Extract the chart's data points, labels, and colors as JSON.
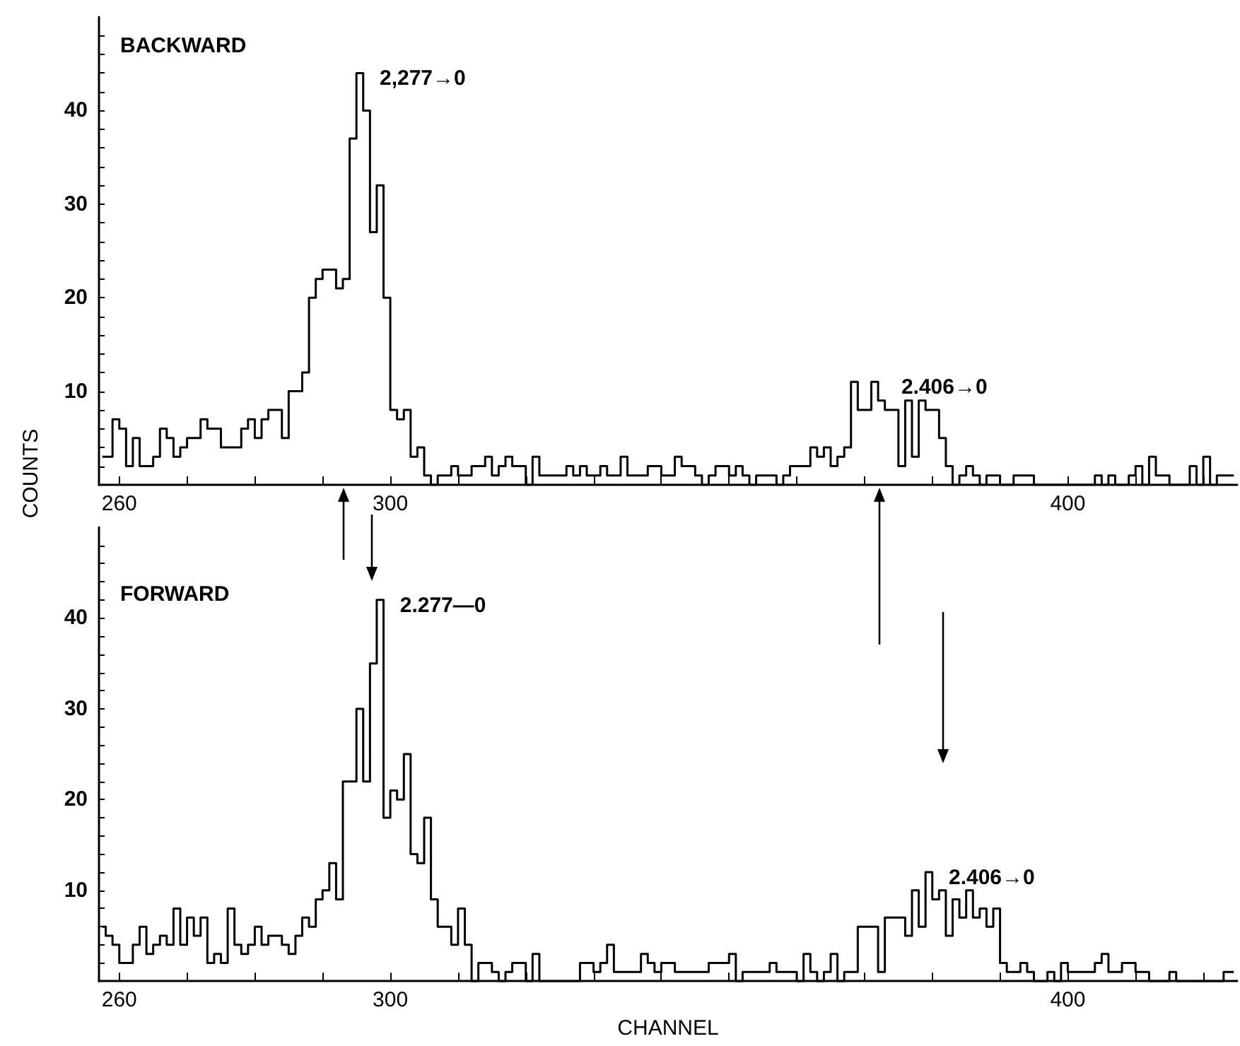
{
  "chart_data": [
    {
      "type": "step",
      "title": "BACKWARD",
      "ylabel": "COUNTS",
      "color": "#000000",
      "x": [
        257.5,
        258.5,
        259.5,
        260.5,
        261.5,
        262.5,
        263.5,
        264.5,
        265.5,
        266.5,
        267.5,
        268.5,
        269.5,
        270.5,
        271.5,
        272.5,
        273.5,
        274.5,
        275.5,
        276.5,
        277.5,
        278.5,
        279.5,
        280.5,
        281.5,
        282.5,
        283.5,
        284.5,
        285.5,
        286.5,
        287.5,
        288.5,
        289.5,
        290.5,
        291.5,
        292.5,
        293.5,
        294.5,
        295.5,
        296.5,
        297.5,
        298.5,
        299.5,
        300.5,
        301.5,
        302.5,
        303.5,
        304.5,
        305.5,
        306.5,
        307.5,
        308.5,
        309.5,
        310.5,
        311.5,
        312.5,
        313.5,
        314.5,
        315.5,
        316.5,
        317.5,
        318.5,
        319.5,
        320.5,
        321.5,
        322.5,
        323.5,
        324.5,
        325.5,
        326.5,
        327.5,
        328.5,
        329.5,
        330.5,
        331.5,
        332.5,
        333.5,
        334.5,
        335.5,
        336.5,
        337.5,
        338.5,
        339.5,
        340.5,
        341.5,
        342.5,
        343.5,
        344.5,
        345.5,
        346.5,
        347.5,
        348.5,
        349.5,
        350.5,
        351.5,
        352.5,
        353.5,
        354.5,
        355.5,
        356.5,
        357.5,
        358.5,
        359.5,
        360.5,
        361.5,
        362.5,
        363.5,
        364.5,
        365.5,
        366.5,
        367.5,
        368.5,
        369.5,
        370.5,
        371.5,
        372.5,
        373.5,
        374.5,
        375.5,
        376.5,
        377.5,
        378.5,
        379.5,
        380.5,
        381.5,
        382.5,
        383.5,
        384.5,
        385.5,
        386.5,
        387.5,
        388.5,
        389.5,
        390.5,
        391.5,
        392.5,
        393.5,
        394.5,
        395.5,
        396.5,
        397.5,
        398.5,
        399.5,
        400.5,
        401.5,
        402.5,
        403.5,
        404.5,
        405.5,
        406.5,
        407.5,
        408.5,
        409.5,
        410.5,
        411.5,
        412.5,
        413.5,
        414.5,
        415.5,
        416.5,
        417.5,
        418.5,
        419.5,
        420.5,
        421.5,
        422.5,
        423.5,
        424.5
      ],
      "values": [
        3,
        3,
        7,
        6,
        2,
        5,
        2,
        2,
        3,
        6,
        5,
        3,
        4,
        5,
        5,
        7,
        6,
        6,
        4,
        4,
        4,
        6,
        7,
        5,
        7,
        8,
        8,
        5,
        10,
        10,
        12,
        20,
        22,
        23,
        23,
        21,
        22,
        37,
        44,
        40,
        27,
        32,
        20,
        8,
        7,
        8,
        3,
        4,
        1,
        0,
        1,
        1,
        2,
        1,
        1,
        2,
        2,
        3,
        1,
        2,
        3,
        2,
        2,
        0,
        3,
        1,
        1,
        1,
        1,
        2,
        1,
        2,
        1,
        1,
        2,
        1,
        1,
        3,
        1,
        1,
        1,
        2,
        2,
        1,
        1,
        3,
        2,
        2,
        1,
        0,
        1,
        2,
        2,
        1,
        2,
        1,
        0,
        1,
        1,
        1,
        0,
        1,
        2,
        2,
        2,
        4,
        3,
        4,
        2,
        3,
        4,
        11,
        8,
        8,
        11,
        9,
        8,
        8,
        2,
        9,
        3,
        9,
        8,
        8,
        5,
        2,
        0,
        1,
        2,
        1,
        0,
        1,
        1,
        0,
        0,
        1,
        1,
        1,
        0,
        0,
        0,
        0,
        0,
        0,
        0,
        0,
        0,
        1,
        0,
        1,
        0,
        0,
        1,
        2,
        0,
        3,
        1,
        1,
        0,
        0,
        0,
        2,
        0,
        3,
        0,
        1,
        1,
        1
      ],
      "xlim": [
        257,
        425
      ],
      "xticks": [
        260,
        {
          "value": 270,
          "label": null
        },
        {
          "value": 280,
          "label": null
        },
        {
          "value": 290,
          "label": null
        },
        300,
        {
          "value": 310,
          "label": null
        },
        {
          "value": 320,
          "label": null
        },
        {
          "value": 330,
          "label": null
        },
        {
          "value": 340,
          "label": null
        },
        {
          "value": 350,
          "label": null
        },
        {
          "value": 360,
          "label": null
        },
        {
          "value": 370,
          "label": null
        },
        {
          "value": 380,
          "label": null
        },
        {
          "value": 390,
          "label": null
        },
        400,
        {
          "value": 410,
          "label": null
        },
        {
          "value": 420,
          "label": null
        }
      ],
      "ylim": [
        0,
        50
      ],
      "yticks": [
        {
          "value": 2,
          "label": null
        },
        {
          "value": 4,
          "label": null
        },
        {
          "value": 6,
          "label": null
        },
        {
          "value": 8,
          "label": null
        },
        10,
        {
          "value": 12,
          "label": null
        },
        {
          "value": 14,
          "label": null
        },
        {
          "value": 16,
          "label": null
        },
        {
          "value": 18,
          "label": null
        },
        20,
        {
          "value": 22,
          "label": null
        },
        {
          "value": 24,
          "label": null
        },
        {
          "value": 26,
          "label": null
        },
        {
          "value": 28,
          "label": null
        },
        30,
        {
          "value": 32,
          "label": null
        },
        {
          "value": 34,
          "label": null
        },
        {
          "value": 36,
          "label": null
        },
        {
          "value": 38,
          "label": null
        },
        40,
        {
          "value": 42,
          "label": null
        },
        {
          "value": 44,
          "label": null
        },
        {
          "value": 46,
          "label": null
        },
        {
          "value": 48,
          "label": null
        }
      ],
      "annotations": [
        {
          "text": "2,277→0",
          "x": 295.5,
          "y": 44
        },
        {
          "text": "2.406→0",
          "x": 372.5,
          "y": 11
        }
      ]
    },
    {
      "type": "step",
      "title": "FORWARD",
      "xlabel": "CHANNEL",
      "color": "#000000",
      "x": [
        257.5,
        258.5,
        259.5,
        260.5,
        261.5,
        262.5,
        263.5,
        264.5,
        265.5,
        266.5,
        267.5,
        268.5,
        269.5,
        270.5,
        271.5,
        272.5,
        273.5,
        274.5,
        275.5,
        276.5,
        277.5,
        278.5,
        279.5,
        280.5,
        281.5,
        282.5,
        283.5,
        284.5,
        285.5,
        286.5,
        287.5,
        288.5,
        289.5,
        290.5,
        291.5,
        292.5,
        293.5,
        294.5,
        295.5,
        296.5,
        297.5,
        298.5,
        299.5,
        300.5,
        301.5,
        302.5,
        303.5,
        304.5,
        305.5,
        306.5,
        307.5,
        308.5,
        309.5,
        310.5,
        311.5,
        312.5,
        313.5,
        314.5,
        315.5,
        316.5,
        317.5,
        318.5,
        319.5,
        320.5,
        321.5,
        322.5,
        323.5,
        324.5,
        325.5,
        326.5,
        327.5,
        328.5,
        329.5,
        330.5,
        331.5,
        332.5,
        333.5,
        334.5,
        335.5,
        336.5,
        337.5,
        338.5,
        339.5,
        340.5,
        341.5,
        342.5,
        343.5,
        344.5,
        345.5,
        346.5,
        347.5,
        348.5,
        349.5,
        350.5,
        351.5,
        352.5,
        353.5,
        354.5,
        355.5,
        356.5,
        357.5,
        358.5,
        359.5,
        360.5,
        361.5,
        362.5,
        363.5,
        364.5,
        365.5,
        366.5,
        367.5,
        368.5,
        369.5,
        370.5,
        371.5,
        372.5,
        373.5,
        374.5,
        375.5,
        376.5,
        377.5,
        378.5,
        379.5,
        380.5,
        381.5,
        382.5,
        383.5,
        384.5,
        385.5,
        386.5,
        387.5,
        388.5,
        389.5,
        390.5,
        391.5,
        392.5,
        393.5,
        394.5,
        395.5,
        396.5,
        397.5,
        398.5,
        399.5,
        400.5,
        401.5,
        402.5,
        403.5,
        404.5,
        405.5,
        406.5,
        407.5,
        408.5,
        409.5,
        410.5,
        411.5,
        412.5,
        413.5,
        414.5,
        415.5,
        416.5,
        417.5,
        418.5,
        419.5,
        420.5,
        421.5,
        422.5,
        423.5,
        424.5
      ],
      "values": [
        6,
        5,
        4,
        2,
        2,
        4,
        6,
        3,
        4,
        5,
        4,
        8,
        4,
        7,
        5,
        7,
        2,
        3,
        2,
        8,
        4,
        3,
        4,
        6,
        4,
        5,
        5,
        4,
        3,
        5,
        7,
        6,
        9,
        10,
        13,
        9,
        22,
        22,
        30,
        22,
        35,
        42,
        18,
        21,
        20,
        25,
        14,
        13,
        18,
        9,
        6,
        6,
        4,
        8,
        4,
        0,
        2,
        2,
        1,
        0,
        1,
        2,
        2,
        0,
        3,
        0,
        0,
        0,
        0,
        0,
        0,
        2,
        2,
        1,
        2,
        4,
        1,
        1,
        1,
        1,
        3,
        2,
        1,
        2,
        2,
        1,
        1,
        1,
        1,
        1,
        2,
        2,
        2,
        3,
        0,
        1,
        1,
        1,
        1,
        2,
        1,
        1,
        1,
        0,
        3,
        1,
        0,
        1,
        3,
        0,
        1,
        1,
        6,
        6,
        6,
        1,
        7,
        7,
        7,
        5,
        10,
        6,
        12,
        9,
        10,
        5,
        9,
        7,
        10,
        7,
        8,
        6,
        8,
        2,
        1,
        1,
        2,
        1,
        0,
        0,
        1,
        0,
        2,
        1,
        1,
        1,
        1,
        2,
        3,
        1,
        1,
        2,
        2,
        1,
        1,
        0,
        0,
        0,
        1,
        0,
        0,
        0,
        0,
        0,
        0,
        0,
        1,
        1
      ],
      "xlim": [
        257,
        425
      ],
      "xticks": [
        260,
        {
          "value": 270,
          "label": null
        },
        {
          "value": 280,
          "label": null
        },
        {
          "value": 290,
          "label": null
        },
        300,
        {
          "value": 310,
          "label": null
        },
        {
          "value": 320,
          "label": null
        },
        {
          "value": 330,
          "label": null
        },
        {
          "value": 340,
          "label": null
        },
        {
          "value": 350,
          "label": null
        },
        {
          "value": 360,
          "label": null
        },
        {
          "value": 370,
          "label": null
        },
        {
          "value": 380,
          "label": null
        },
        {
          "value": 390,
          "label": null
        },
        400,
        {
          "value": 410,
          "label": null
        },
        {
          "value": 420,
          "label": null
        }
      ],
      "ylim": [
        0,
        50
      ],
      "yticks": [
        {
          "value": 2,
          "label": null
        },
        {
          "value": 4,
          "label": null
        },
        {
          "value": 6,
          "label": null
        },
        {
          "value": 8,
          "label": null
        },
        10,
        {
          "value": 12,
          "label": null
        },
        {
          "value": 14,
          "label": null
        },
        {
          "value": 16,
          "label": null
        },
        {
          "value": 18,
          "label": null
        },
        20,
        {
          "value": 22,
          "label": null
        },
        {
          "value": 24,
          "label": null
        },
        {
          "value": 26,
          "label": null
        },
        {
          "value": 28,
          "label": null
        },
        30,
        {
          "value": 32,
          "label": null
        },
        {
          "value": 34,
          "label": null
        },
        {
          "value": 36,
          "label": null
        },
        {
          "value": 38,
          "label": null
        },
        40,
        {
          "value": 42,
          "label": null
        },
        {
          "value": 44,
          "label": null
        },
        {
          "value": 46,
          "label": null
        },
        {
          "value": 48,
          "label": null
        }
      ],
      "annotations": [
        {
          "text": "2.277—0",
          "x": 298.5,
          "y": 42
        },
        {
          "text": "2.406→0",
          "x": 379.5,
          "y": 12
        }
      ]
    }
  ]
}
